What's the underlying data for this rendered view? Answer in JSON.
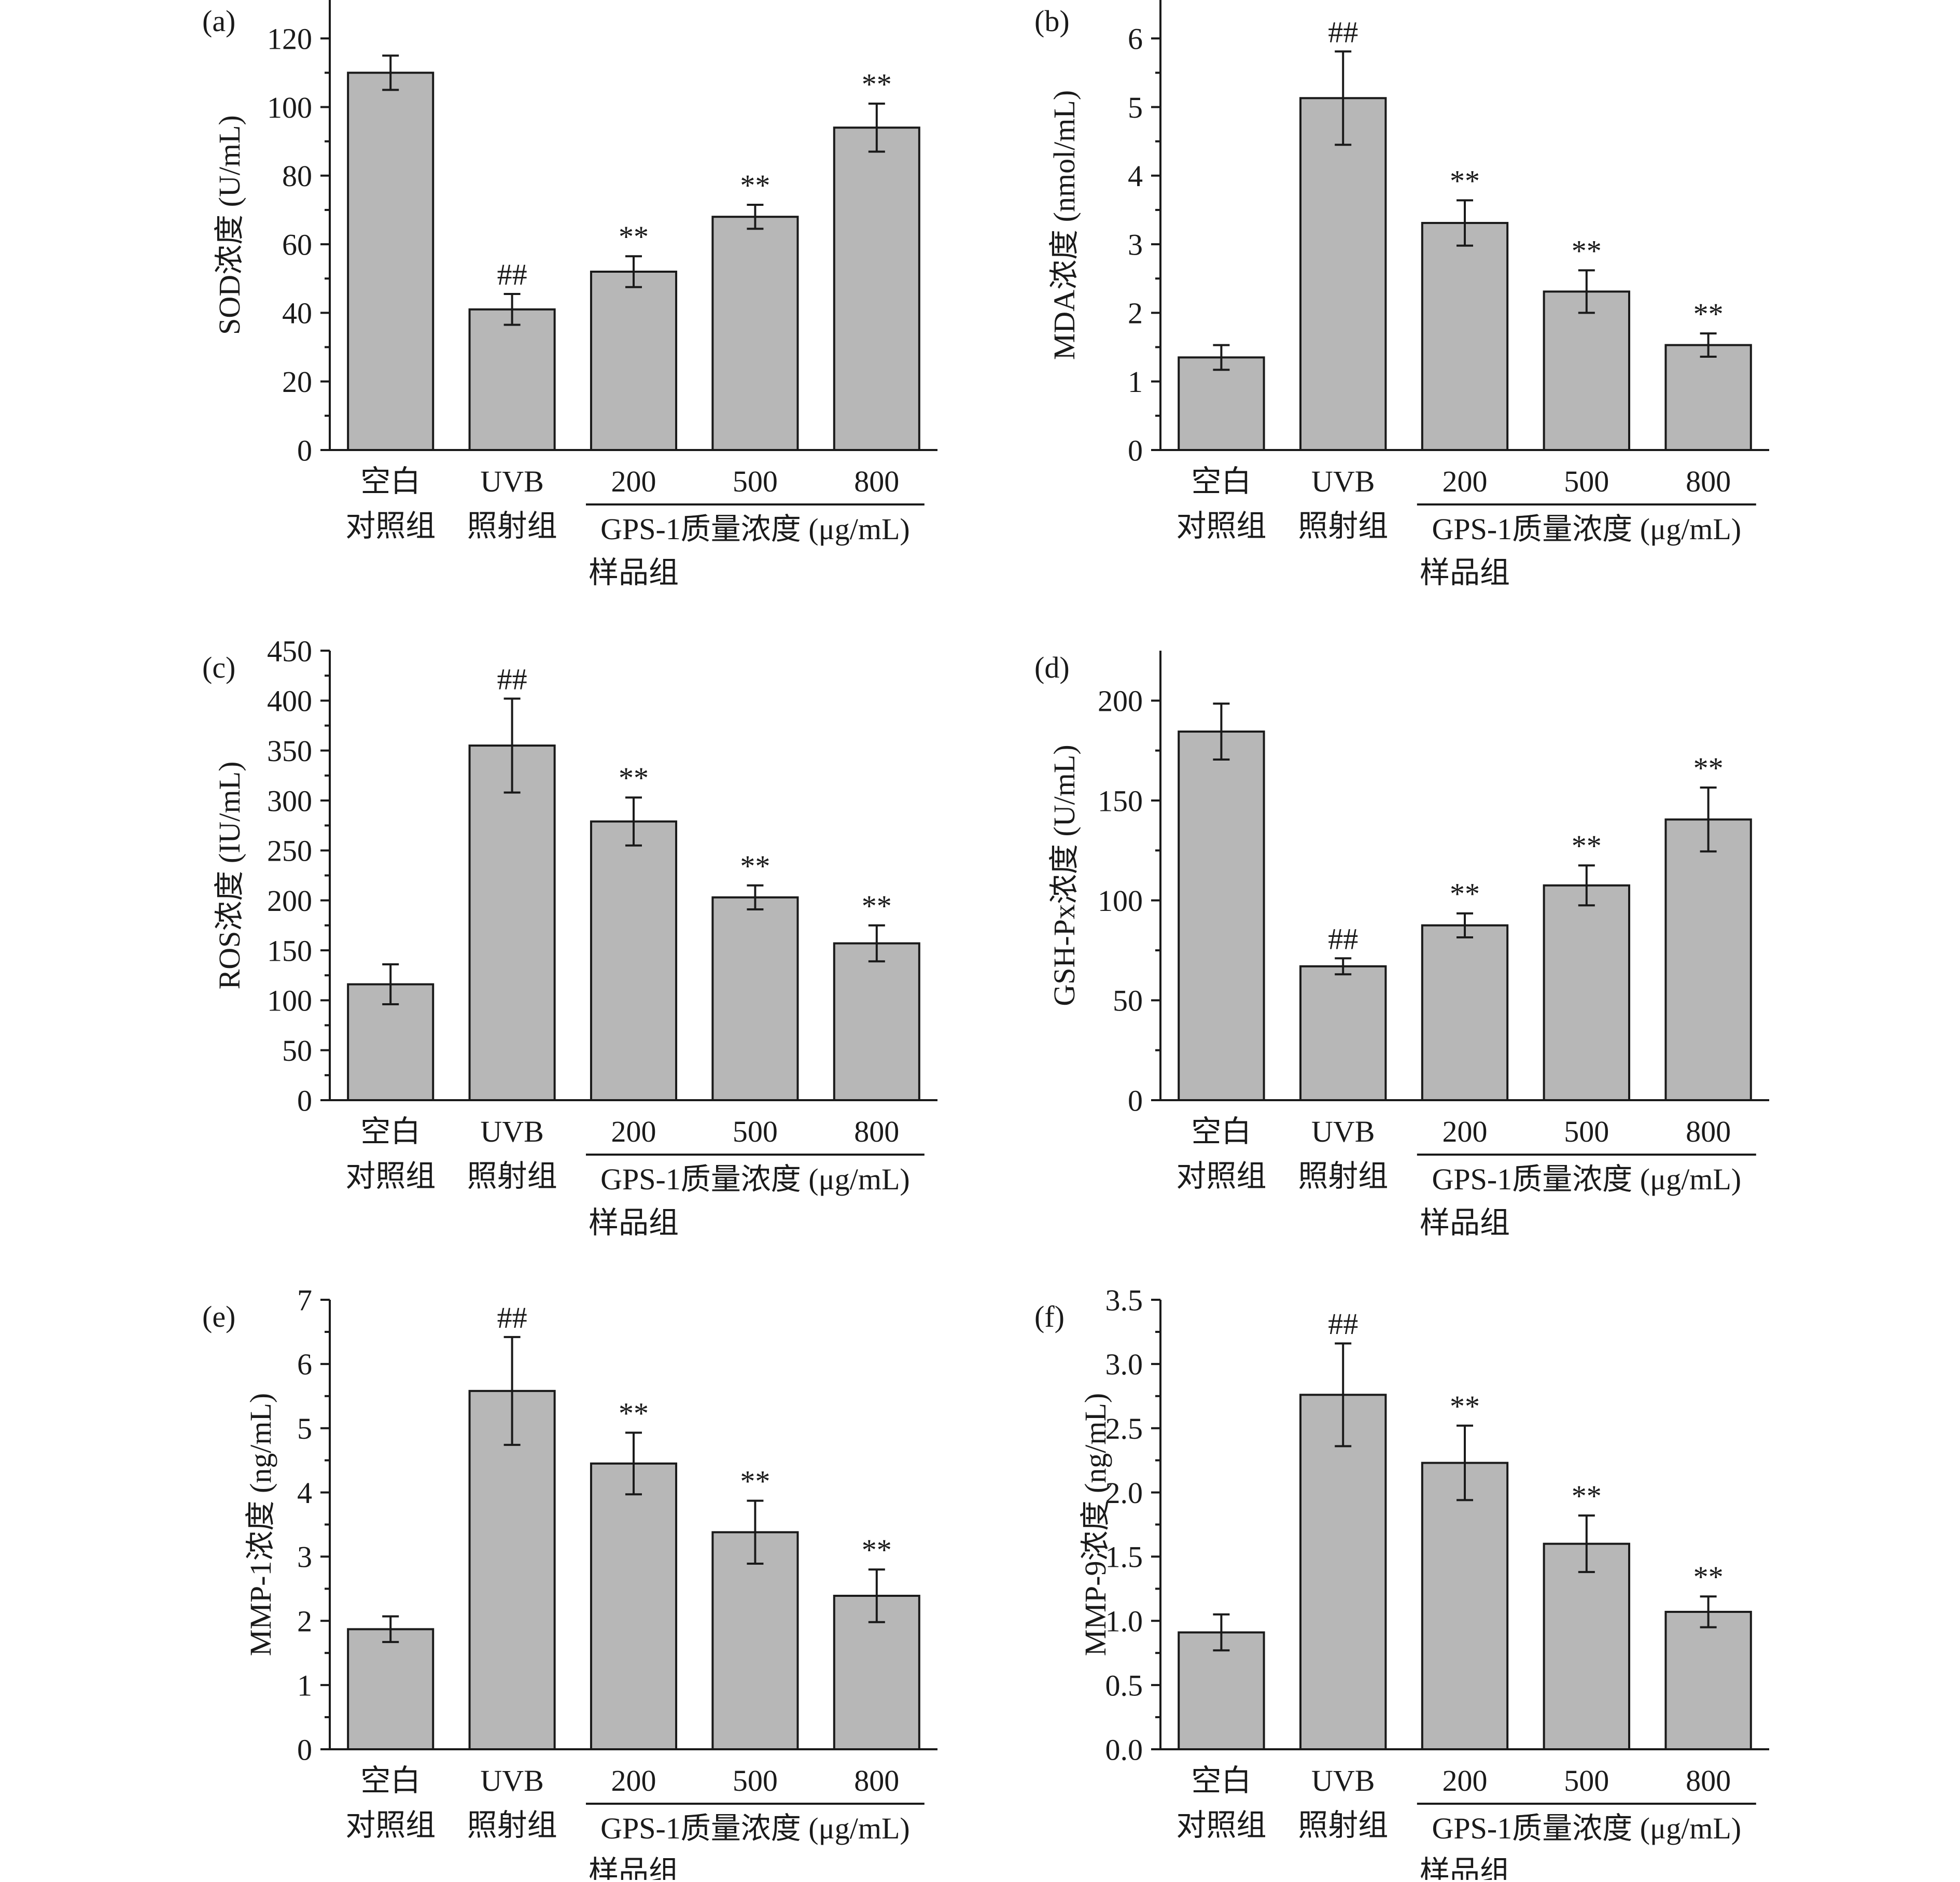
{
  "chart_data": [
    {
      "type": "bar",
      "panel_label": "(a)",
      "ylabel": "SOD浓度 (U/mL)",
      "ylim": [
        0,
        130
      ],
      "yticks": [
        0,
        20,
        40,
        60,
        80,
        100,
        120
      ],
      "yticks_minor": true,
      "categories": [
        [
          "空白",
          "对照组"
        ],
        [
          "UVB",
          "照射组"
        ],
        [
          "200"
        ],
        [
          "500"
        ],
        [
          "800"
        ]
      ],
      "values": [
        110,
        41,
        52,
        68,
        94
      ],
      "errors": [
        5,
        4.5,
        4.5,
        3.5,
        7
      ],
      "annotations": [
        "",
        "##",
        "**",
        "**",
        "**"
      ],
      "group_label": "GPS-1质量浓度 (μg/mL)",
      "group_sub": "样品组",
      "bar_color": "#b7b7b7"
    },
    {
      "type": "bar",
      "panel_label": "(b)",
      "ylabel": "MDA浓度 (nmol/mL)",
      "ylim": [
        0,
        6.5
      ],
      "yticks": [
        0,
        1,
        2,
        3,
        4,
        5,
        6
      ],
      "yticks_minor": true,
      "categories": [
        [
          "空白",
          "对照组"
        ],
        [
          "UVB",
          "照射组"
        ],
        [
          "200"
        ],
        [
          "500"
        ],
        [
          "800"
        ]
      ],
      "values": [
        1.35,
        5.13,
        3.31,
        2.31,
        1.53
      ],
      "errors": [
        0.18,
        0.68,
        0.33,
        0.31,
        0.17
      ],
      "annotations": [
        "",
        "##",
        "**",
        "**",
        "**"
      ],
      "group_label": "GPS-1质量浓度 (μg/mL)",
      "group_sub": "样品组",
      "bar_color": "#b7b7b7"
    },
    {
      "type": "bar",
      "panel_label": "(c)",
      "ylabel": "ROS浓度 (IU/mL)",
      "ylim": [
        0,
        450
      ],
      "yticks": [
        0,
        50,
        100,
        150,
        200,
        250,
        300,
        350,
        400,
        450
      ],
      "yticks_minor": true,
      "categories": [
        [
          "空白",
          "对照组"
        ],
        [
          "UVB",
          "照射组"
        ],
        [
          "200"
        ],
        [
          "500"
        ],
        [
          "800"
        ]
      ],
      "values": [
        116,
        355,
        279,
        203,
        157
      ],
      "errors": [
        20,
        47,
        24,
        12,
        18
      ],
      "annotations": [
        "",
        "##",
        "**",
        "**",
        "**"
      ],
      "group_label": "GPS-1质量浓度 (μg/mL)",
      "group_sub": "样品组",
      "bar_color": "#b7b7b7"
    },
    {
      "type": "bar",
      "panel_label": "(d)",
      "ylabel": "GSH-Px浓度 (U/mL)",
      "ylim": [
        0,
        225
      ],
      "yticks": [
        0,
        50,
        100,
        150,
        200
      ],
      "yticks_minor": true,
      "categories": [
        [
          "空白",
          "对照组"
        ],
        [
          "UVB",
          "照射组"
        ],
        [
          "200"
        ],
        [
          "500"
        ],
        [
          "800"
        ]
      ],
      "values": [
        184.5,
        67,
        87.5,
        107.5,
        140.5
      ],
      "errors": [
        14,
        4,
        6,
        10,
        16
      ],
      "annotations": [
        "",
        "##",
        "**",
        "**",
        "**"
      ],
      "group_label": "GPS-1质量浓度 (μg/mL)",
      "group_sub": "样品组",
      "bar_color": "#b7b7b7"
    },
    {
      "type": "bar",
      "panel_label": "(e)",
      "ylabel": "MMP-1浓度 (ng/mL)",
      "ylim": [
        0,
        7
      ],
      "yticks": [
        0,
        1,
        2,
        3,
        4,
        5,
        6,
        7
      ],
      "yticks_minor": true,
      "categories": [
        [
          "空白",
          "对照组"
        ],
        [
          "UVB",
          "照射组"
        ],
        [
          "200"
        ],
        [
          "500"
        ],
        [
          "800"
        ]
      ],
      "values": [
        1.87,
        5.58,
        4.45,
        3.38,
        2.39
      ],
      "errors": [
        0.2,
        0.84,
        0.48,
        0.49,
        0.41
      ],
      "annotations": [
        "",
        "##",
        "**",
        "**",
        "**"
      ],
      "group_label": "GPS-1质量浓度 (μg/mL)",
      "group_sub": "样品组",
      "bar_color": "#b7b7b7"
    },
    {
      "type": "bar",
      "panel_label": "(f)",
      "ylabel": "MMP-9浓度 (ng/mL)",
      "ylim": [
        0,
        3.5
      ],
      "yticks": [
        "0.0",
        "0.5",
        "1.0",
        "1.5",
        "2.0",
        "2.5",
        "3.0",
        "3.5"
      ],
      "yticks_minor": true,
      "categories": [
        [
          "空白",
          "对照组"
        ],
        [
          "UVB",
          "照射组"
        ],
        [
          "200"
        ],
        [
          "500"
        ],
        [
          "800"
        ]
      ],
      "values": [
        0.91,
        2.76,
        2.23,
        1.6,
        1.07
      ],
      "errors": [
        0.14,
        0.4,
        0.29,
        0.22,
        0.12
      ],
      "annotations": [
        "",
        "##",
        "**",
        "**",
        "**"
      ],
      "group_label": "GPS-1质量浓度 (μg/mL)",
      "group_sub": "样品组",
      "bar_color": "#b7b7b7"
    }
  ]
}
